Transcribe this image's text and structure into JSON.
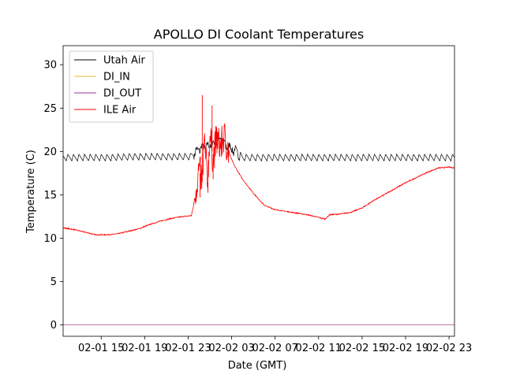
{
  "chart_data": {
    "type": "line",
    "title": "APOLLO DI Coolant Temperatures",
    "xlabel": "Date (GMT)",
    "ylabel": "Temperature (C)",
    "x_unit": "hours since 2024-02-01 00:00 GMT",
    "xlim": [
      11.5,
      47.5
    ],
    "ylim": [
      -1.3,
      32.2
    ],
    "xticks": [
      {
        "x": 15,
        "label": "02-01 15"
      },
      {
        "x": 19,
        "label": "02-01 19"
      },
      {
        "x": 23,
        "label": "02-01 23"
      },
      {
        "x": 27,
        "label": "02-02 03"
      },
      {
        "x": 31,
        "label": "02-02 07"
      },
      {
        "x": 35,
        "label": "02-02 11"
      },
      {
        "x": 39,
        "label": "02-02 15"
      },
      {
        "x": 43,
        "label": "02-02 19"
      },
      {
        "x": 47,
        "label": "02-02 23"
      }
    ],
    "yticks": [
      0,
      5,
      10,
      15,
      20,
      25,
      30
    ],
    "grid": false,
    "legend": {
      "position": "top-left"
    },
    "series": [
      {
        "name": "Utah Air",
        "color": "#000000",
        "x": [
          11.5,
          14,
          16,
          18,
          20,
          22,
          23.2,
          24,
          24.5,
          25,
          25.5,
          26,
          26.5,
          27,
          27.5,
          28,
          30,
          32,
          34,
          36,
          38,
          40,
          42,
          44,
          46,
          47,
          47.5
        ],
        "y": [
          19.3,
          19.3,
          19.3,
          19.4,
          19.4,
          19.4,
          19.4,
          20.3,
          20.5,
          20.7,
          21.0,
          21.6,
          20.6,
          20.3,
          19.9,
          19.3,
          19.3,
          19.3,
          19.3,
          19.3,
          19.3,
          19.3,
          19.3,
          19.3,
          19.3,
          19.3,
          19.3
        ],
        "oscillation_amplitude": 0.4
      },
      {
        "name": "DI_IN",
        "color": "#ddbb33",
        "x": [
          11.5,
          47.5
        ],
        "y": [
          0,
          0
        ]
      },
      {
        "name": "DI_OUT",
        "color": "#993399",
        "x": [
          11.5,
          47.5
        ],
        "y": [
          0,
          0
        ]
      },
      {
        "name": "ILE Air",
        "color": "#ff0000",
        "x": [
          11.5,
          12.5,
          13.5,
          14.5,
          15.5,
          16.5,
          17.5,
          18.5,
          19.5,
          20.5,
          21.5,
          22.5,
          23.3,
          23.5,
          24,
          24.3,
          24.5,
          24.8,
          25,
          25.3,
          25.6,
          26,
          26.3,
          26.7,
          27.2,
          28,
          29,
          30,
          31,
          32,
          33,
          34,
          35,
          35.6,
          36,
          37,
          38,
          39,
          40,
          41,
          42,
          43,
          44,
          45,
          46,
          47,
          47.5
        ],
        "y": [
          11.2,
          11.0,
          10.7,
          10.4,
          10.4,
          10.5,
          10.8,
          11.1,
          11.6,
          12.0,
          12.3,
          12.5,
          12.6,
          13.8,
          18.0,
          16.5,
          21.0,
          16.5,
          22.0,
          19.0,
          21.5,
          20.5,
          21.8,
          20.0,
          18.5,
          16.8,
          15.2,
          13.8,
          13.3,
          13.1,
          12.9,
          12.7,
          12.4,
          12.2,
          12.7,
          12.8,
          13.0,
          13.5,
          14.3,
          15.0,
          15.7,
          16.4,
          17.0,
          17.6,
          18.1,
          18.2,
          18.1
        ],
        "noise_amplitude": 0.3
      }
    ],
    "spikes": [
      {
        "series": "ILE Air",
        "x": 24.3,
        "y": 26.5
      },
      {
        "series": "ILE Air",
        "x": 25.2,
        "y": 25.3
      },
      {
        "series": "ILE Air",
        "x": 24.1,
        "y": 14.7
      },
      {
        "series": "ILE Air",
        "x": 25.3,
        "y": 16.8
      }
    ]
  }
}
